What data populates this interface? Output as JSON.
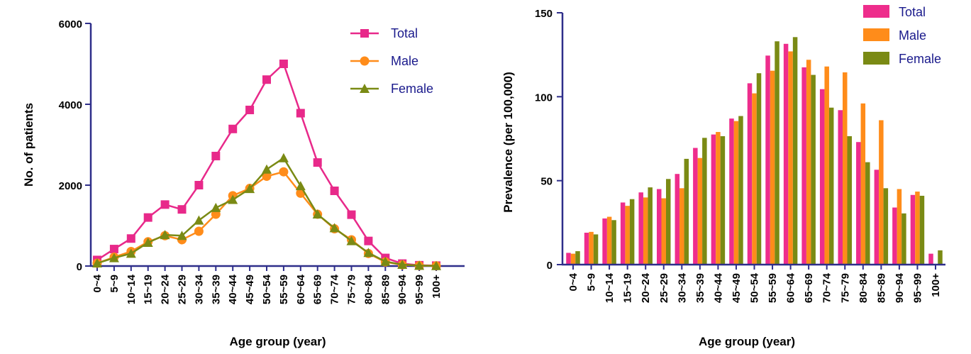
{
  "chart_data": [
    {
      "type": "line",
      "xlabel": "Age group (year)",
      "ylabel": "No. of patients",
      "ylim": [
        0,
        6000
      ],
      "yticks": [
        0,
        2000,
        4000,
        6000
      ],
      "categories": [
        "0~4",
        "5~9",
        "10~14",
        "15~19",
        "20~24",
        "25~29",
        "30~34",
        "35~39",
        "40~44",
        "45~49",
        "50~54",
        "55~59",
        "60~64",
        "65~69",
        "70~74",
        "75~79",
        "80~84",
        "85~89",
        "90~94",
        "95~99",
        "100+"
      ],
      "series": [
        {
          "name": "Total",
          "color": "#e8298a",
          "marker": "square",
          "values": [
            150,
            420,
            680,
            1200,
            1520,
            1400,
            2000,
            2720,
            3390,
            3860,
            4610,
            5000,
            3780,
            2560,
            1860,
            1270,
            620,
            200,
            60,
            20,
            10
          ]
        },
        {
          "name": "Male",
          "color": "#ff8c1a",
          "marker": "circle",
          "values": [
            70,
            220,
            360,
            600,
            750,
            650,
            860,
            1280,
            1740,
            1920,
            2220,
            2330,
            1800,
            1280,
            920,
            650,
            310,
            100,
            30,
            10,
            5
          ]
        },
        {
          "name": "Female",
          "color": "#7a8a14",
          "marker": "triangle",
          "values": [
            70,
            200,
            310,
            580,
            770,
            750,
            1130,
            1440,
            1640,
            1910,
            2390,
            2670,
            1980,
            1280,
            940,
            620,
            330,
            110,
            35,
            10,
            5
          ]
        }
      ],
      "legend_position": "top-right"
    },
    {
      "type": "bar",
      "xlabel": "Age group (year)",
      "ylabel": "Prevalence  (per 100,000)",
      "ylim": [
        0,
        150
      ],
      "yticks": [
        0,
        50,
        100,
        150
      ],
      "categories": [
        "0~4",
        "5~9",
        "10~14",
        "15~19",
        "20~24",
        "25~29",
        "30~34",
        "35~39",
        "40~44",
        "45~49",
        "50~54",
        "55~59",
        "60~64",
        "65~69",
        "70~74",
        "75~79",
        "80~84",
        "85~89",
        "90~94",
        "95~99",
        "100+"
      ],
      "series": [
        {
          "name": "Total",
          "color": "#ee2d8c",
          "values": [
            7,
            19,
            27.5,
            37,
            43,
            45,
            54,
            69.5,
            77.5,
            87,
            108,
            124.5,
            131.5,
            117.5,
            104.5,
            92,
            73,
            56.5,
            34,
            41.5,
            6.5
          ]
        },
        {
          "name": "Male",
          "color": "#ff8c1a",
          "values": [
            6.5,
            19.5,
            28.5,
            35,
            40,
            39.5,
            45.5,
            63.5,
            79,
            85.5,
            102,
            115.5,
            127,
            122,
            118,
            114.5,
            96,
            86,
            45,
            43.5,
            0
          ]
        },
        {
          "name": "Female",
          "color": "#7a8a14",
          "values": [
            8,
            18,
            26.5,
            39,
            46,
            51,
            63,
            75.5,
            76.5,
            88.5,
            114,
            133,
            135.5,
            113,
            93.5,
            76.5,
            61,
            45.5,
            30.5,
            41,
            8.5
          ]
        }
      ],
      "legend_position": "top-right"
    }
  ]
}
